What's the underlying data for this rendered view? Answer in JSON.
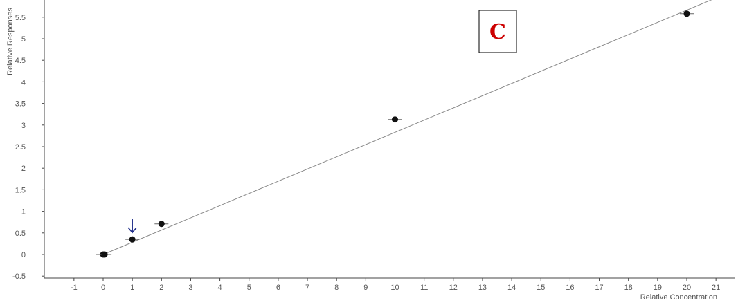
{
  "chart_data": {
    "type": "scatter",
    "xlabel": "Relative Concentration",
    "ylabel": "Relative Responses",
    "xlim": [
      -1.5,
      21.3
    ],
    "ylim": [
      -0.5,
      5.9
    ],
    "x_ticks": [
      -1,
      0,
      1,
      2,
      3,
      4,
      5,
      6,
      7,
      8,
      9,
      10,
      11,
      12,
      13,
      14,
      15,
      16,
      17,
      18,
      19,
      20,
      21
    ],
    "y_ticks": [
      -0.5,
      0,
      0.5,
      1,
      1.5,
      2,
      2.5,
      3,
      3.5,
      4,
      4.5,
      5,
      5.5
    ],
    "points": [
      {
        "x": 0,
        "y": 0
      },
      {
        "x": 0.05,
        "y": 0
      },
      {
        "x": 1,
        "y": 0.35
      },
      {
        "x": 2,
        "y": 0.71
      },
      {
        "x": 10,
        "y": 3.13
      },
      {
        "x": 20,
        "y": 5.58
      }
    ],
    "fit_line": {
      "x": [
        0,
        21.3
      ],
      "y": [
        0,
        6.03
      ]
    },
    "highlight_arrow": {
      "x": 1,
      "y": 0.35
    },
    "colors": {
      "points": "#111111",
      "fit_line": "#888888",
      "arrow": "#1f2d8a",
      "panel_letter": "#cc0000",
      "axes": "#444444"
    }
  },
  "panel": {
    "letter": "C"
  }
}
